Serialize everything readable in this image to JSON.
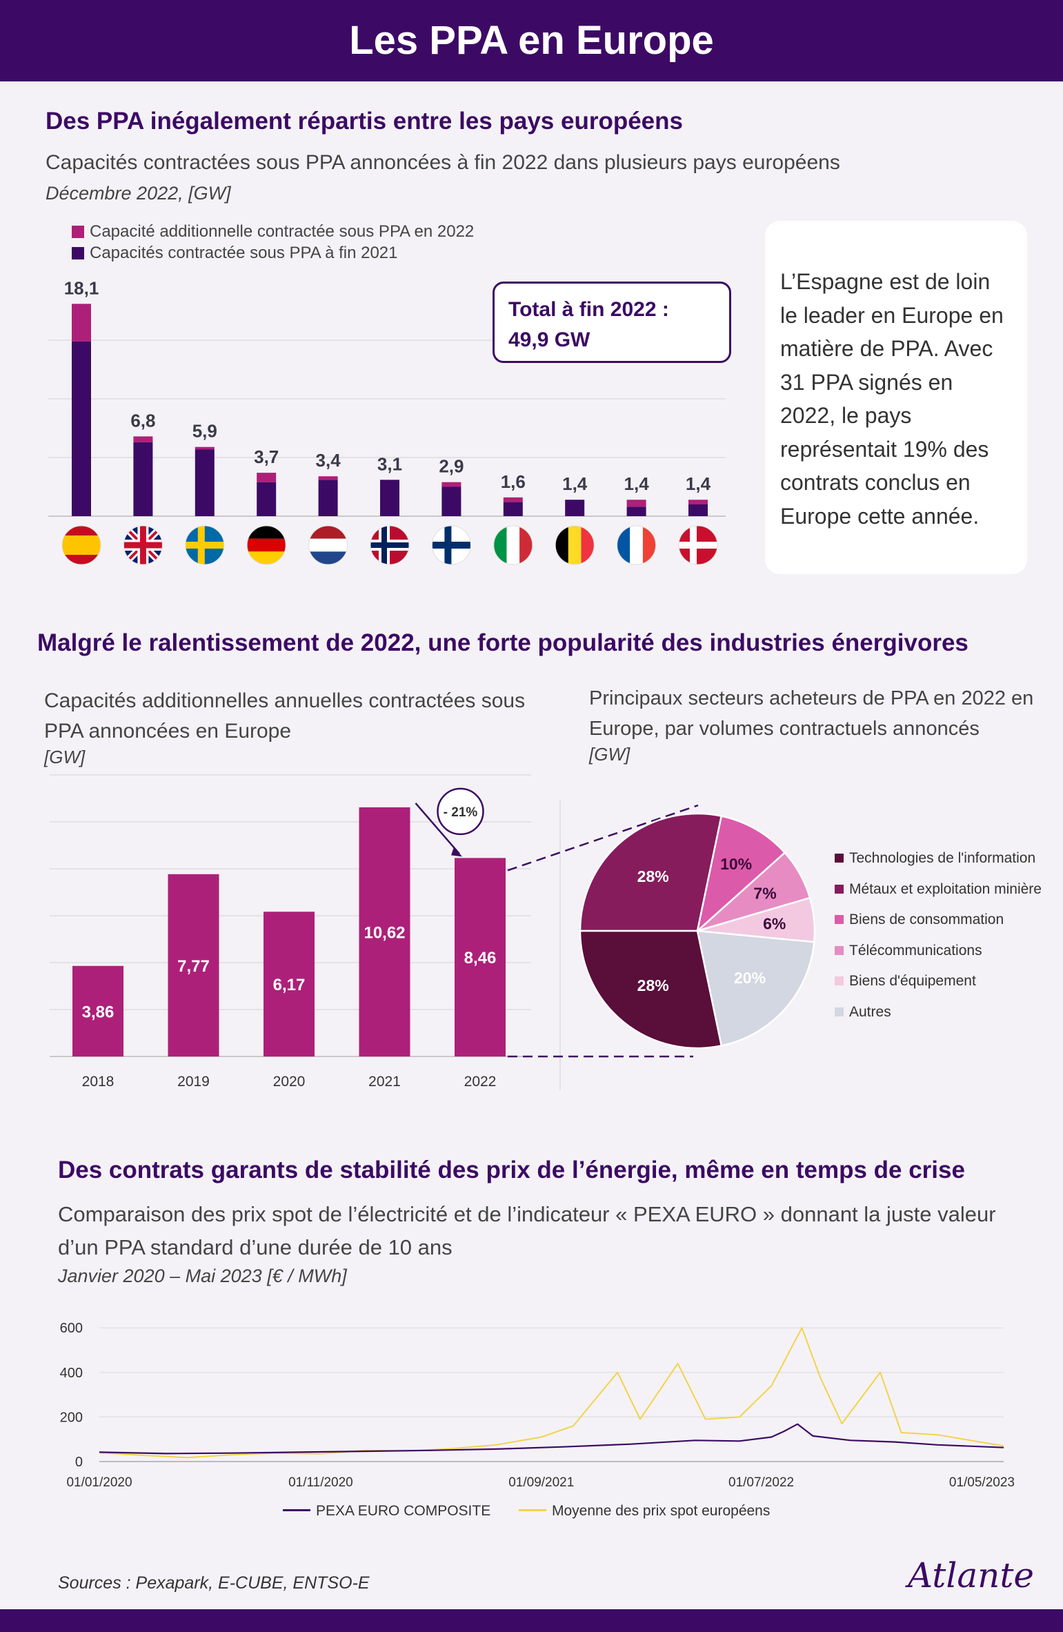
{
  "header": {
    "title": "Les PPA en Europe"
  },
  "section1": {
    "heading": "Des PPA inégalement répartis entre les pays européens",
    "subtitle": "Capacités contractées sous PPA annoncées à fin 2022 dans plusieurs pays européens",
    "subtitle_unit": "Décembre 2022, [GW]",
    "total_box": {
      "line1": "Total à fin 2022 :",
      "line2": "49,9 GW"
    },
    "note": "L’Espagne est de loin le leader en Europe en matière de PPA. Avec 31 PPA signés en 2022, le pays représentait 19% des contrats conclus en Europe cette année."
  },
  "section2": {
    "heading": "Malgré le ralentissement de 2022, une forte popularité des industries énergivores",
    "bar_title": "Capacités additionnelles annuelles contractées sous PPA annoncées en Europe",
    "bar_unit": "[GW]",
    "pie_title": "Principaux secteurs acheteurs de PPA en 2022 en Europe, par volumes contractuels annoncés",
    "pie_unit": "[GW]",
    "change_label": "- 21%"
  },
  "section3": {
    "heading": "Des contrats garants de stabilité des prix de l’énergie, même en temps de crise",
    "subtitle": "Comparaison des prix spot de l’électricité et de l’indicateur « PEXA EURO » donnant la juste valeur d’un PPA standard d’une durée de 10 ans",
    "subtitle_unit": "Janvier 2020 – Mai 2023 [€ / MWh]"
  },
  "footer": {
    "sources": "Sources : Pexapark, E-CUBE, ENTSO-E",
    "brand": "Atlante"
  },
  "colors": {
    "primary": "#3c0a64",
    "magenta": "#ad2079",
    "spot": "#f2d34a",
    "pexa": "#3c0a64"
  },
  "chart_data": [
    {
      "type": "bar",
      "stacked": true,
      "categories": [
        "Espagne",
        "Royaume-Uni",
        "Suède",
        "Allemagne",
        "Pays-Bas",
        "Norvège",
        "Finlande",
        "Italie",
        "Belgique",
        "France",
        "Danemark"
      ],
      "category_icons": [
        "flag-es",
        "flag-gb",
        "flag-se",
        "flag-de",
        "flag-nl",
        "flag-no",
        "flag-fi",
        "flag-it",
        "flag-be",
        "flag-fr",
        "flag-dk"
      ],
      "series": [
        {
          "name": "Capacités contractée sous PPA à fin 2021",
          "color": "#3c0a64",
          "values": [
            14.9,
            6.3,
            5.7,
            2.9,
            3.1,
            3.1,
            2.5,
            1.2,
            1.4,
            0.8,
            1.0
          ]
        },
        {
          "name": "Capacité additionnelle contractée sous PPA en 2022",
          "color": "#ad2079",
          "values": [
            3.2,
            0.5,
            0.2,
            0.8,
            0.3,
            0.0,
            0.4,
            0.4,
            0.0,
            0.6,
            0.4
          ]
        }
      ],
      "total_labels": [
        "18,1",
        "6,8",
        "5,9",
        "3,7",
        "3,4",
        "3,1",
        "2,9",
        "1,6",
        "1,4",
        "1,4",
        "1,4"
      ],
      "ylim": [
        0,
        20
      ],
      "legend_position": "top-left"
    },
    {
      "type": "bar",
      "categories": [
        "2018",
        "2019",
        "2020",
        "2021",
        "2022"
      ],
      "values": [
        3.86,
        7.77,
        6.17,
        10.62,
        8.46
      ],
      "labels": [
        "3,86",
        "7,77",
        "6,17",
        "10,62",
        "8,46"
      ],
      "color": "#ad2079",
      "ylim": [
        0,
        12
      ],
      "grid": true
    },
    {
      "type": "pie",
      "slices": [
        {
          "label": "Technologies de l'information",
          "value": 28,
          "text": "28%",
          "color": "#5a0e3a"
        },
        {
          "label": "Métaux et exploitation minière",
          "value": 28,
          "text": "28%",
          "color": "#861c5c"
        },
        {
          "label": "Biens de consommation",
          "value": 10,
          "text": "10%",
          "color": "#dc5aaa"
        },
        {
          "label": "Télécommunications",
          "value": 7,
          "text": "7%",
          "color": "#e68cc3"
        },
        {
          "label": "Biens d'équipement",
          "value": 6,
          "text": "6%",
          "color": "#f3c9e1"
        },
        {
          "label": "Autres",
          "value": 20,
          "text": "20%",
          "color": "#d2d7e1"
        }
      ],
      "legend_position": "right"
    },
    {
      "type": "line",
      "x_range": [
        "2020-01-01",
        "2023-05-31"
      ],
      "x_ticks": [
        "01/01/2020",
        "01/11/2020",
        "01/09/2021",
        "01/07/2022",
        "01/05/2023"
      ],
      "ylim": [
        0,
        600
      ],
      "y_ticks": [
        "0",
        "200",
        "400",
        "600"
      ],
      "grid": true,
      "series": [
        {
          "name": "PEXA EURO COMPOSITE",
          "color": "#3c0a64",
          "points": [
            [
              "2020-01-01",
              42
            ],
            [
              "2020-04-01",
              36
            ],
            [
              "2020-07-01",
              38
            ],
            [
              "2020-10-01",
              42
            ],
            [
              "2021-01-01",
              46
            ],
            [
              "2021-04-01",
              50
            ],
            [
              "2021-07-01",
              56
            ],
            [
              "2021-10-01",
              66
            ],
            [
              "2022-01-01",
              78
            ],
            [
              "2022-04-01",
              95
            ],
            [
              "2022-06-01",
              92
            ],
            [
              "2022-07-15",
              110
            ],
            [
              "2022-08-01",
              135
            ],
            [
              "2022-08-20",
              168
            ],
            [
              "2022-09-10",
              115
            ],
            [
              "2022-11-01",
              95
            ],
            [
              "2023-01-01",
              88
            ],
            [
              "2023-03-01",
              75
            ],
            [
              "2023-05-31",
              63
            ]
          ]
        },
        {
          "name": "Moyenne des prix spot européens",
          "color": "#f2d34a",
          "points": [
            [
              "2020-01-01",
              40
            ],
            [
              "2020-03-01",
              28
            ],
            [
              "2020-05-01",
              18
            ],
            [
              "2020-07-01",
              30
            ],
            [
              "2020-09-01",
              38
            ],
            [
              "2020-11-01",
              35
            ],
            [
              "2021-01-01",
              50
            ],
            [
              "2021-03-01",
              48
            ],
            [
              "2021-05-01",
              58
            ],
            [
              "2021-07-01",
              75
            ],
            [
              "2021-09-01",
              110
            ],
            [
              "2021-10-15",
              160
            ],
            [
              "2021-12-15",
              400
            ],
            [
              "2022-01-15",
              190
            ],
            [
              "2022-03-08",
              440
            ],
            [
              "2022-04-15",
              190
            ],
            [
              "2022-06-01",
              200
            ],
            [
              "2022-07-15",
              340
            ],
            [
              "2022-08-26",
              600
            ],
            [
              "2022-09-20",
              380
            ],
            [
              "2022-10-20",
              170
            ],
            [
              "2022-12-12",
              400
            ],
            [
              "2023-01-10",
              130
            ],
            [
              "2023-03-01",
              120
            ],
            [
              "2023-05-31",
              70
            ]
          ]
        }
      ],
      "legend_position": "bottom"
    }
  ]
}
